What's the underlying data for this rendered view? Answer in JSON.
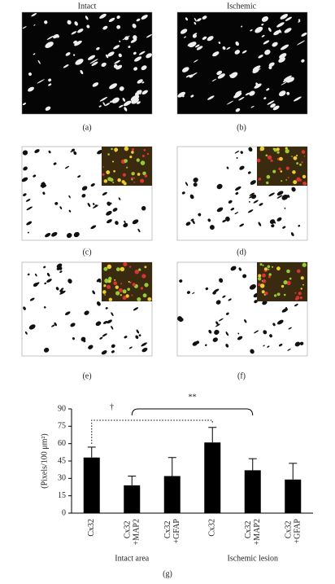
{
  "panels": {
    "column_titles": [
      "Intact",
      "Ischemic"
    ],
    "labels": [
      "(a)",
      "(b)",
      "(c)",
      "(d)",
      "(e)",
      "(f)",
      "(g)"
    ]
  },
  "chart_data": {
    "type": "bar",
    "ylabel": "(Pixels/100 μm²)",
    "categories": [
      "Cx32",
      "Cx32 +MAP2",
      "Cx32 +GFAP",
      "Cx32",
      "Cx32 +MAP2",
      "Cx32 +GFAP"
    ],
    "groups": [
      "Intact area",
      "Ischemic lesion"
    ],
    "series": [
      {
        "color": "#000000",
        "values": [
          48,
          24,
          32,
          61,
          37,
          29
        ],
        "errors": [
          9,
          8,
          16,
          13,
          10,
          14
        ]
      }
    ],
    "ylim": [
      0,
      90
    ],
    "yticks": [
      0,
      15,
      30,
      45,
      60,
      75,
      90
    ],
    "annotations": [
      "†",
      "**"
    ]
  }
}
